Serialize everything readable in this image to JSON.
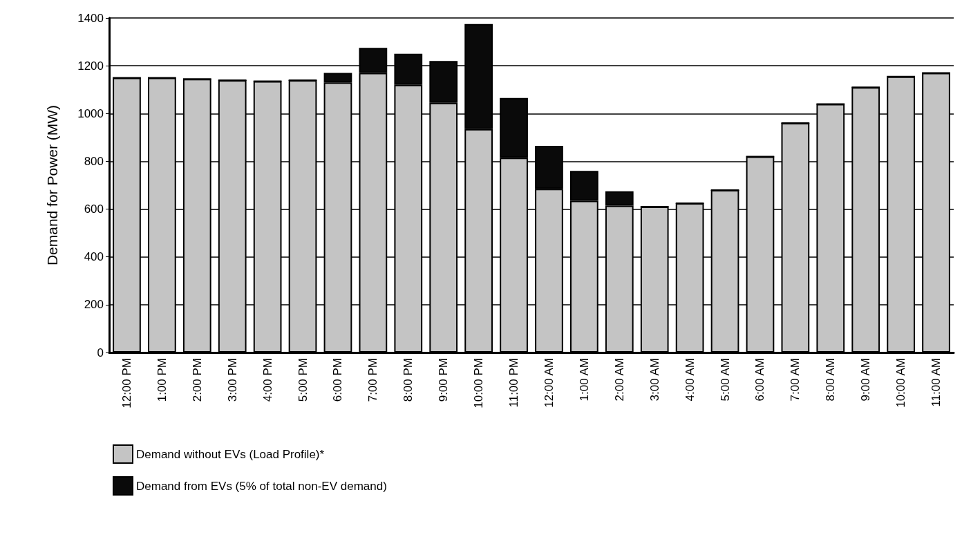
{
  "chart_data": {
    "type": "bar",
    "stacked": true,
    "ylabel": "Demand for Power (MW)",
    "categories": [
      "12:00 PM",
      "1:00 PM",
      "2:00 PM",
      "3:00 PM",
      "4:00 PM",
      "5:00 PM",
      "6:00 PM",
      "7:00 PM",
      "8:00 PM",
      "9:00 PM",
      "10:00 PM",
      "11:00 PM",
      "12:00 AM",
      "1:00 AM",
      "2:00 AM",
      "3:00 AM",
      "4:00 AM",
      "5:00 AM",
      "6:00 AM",
      "7:00 AM",
      "8:00 AM",
      "9:00 AM",
      "10:00 AM",
      "11:00 AM"
    ],
    "series": [
      {
        "name": "Demand without EVs (Load Profile)*",
        "color": "#c4c4c4",
        "values": [
          1150,
          1150,
          1145,
          1140,
          1135,
          1140,
          1130,
          1170,
          1120,
          1045,
          935,
          815,
          685,
          635,
          615,
          610,
          625,
          680,
          820,
          960,
          1040,
          1110,
          1155,
          1170
        ]
      },
      {
        "name": "Demand from EVs (5% of total non-EV demand)",
        "color": "#0a0a0a",
        "values": [
          0,
          0,
          0,
          0,
          0,
          0,
          40,
          105,
          130,
          175,
          440,
          250,
          180,
          125,
          60,
          0,
          0,
          0,
          0,
          0,
          0,
          0,
          0,
          0
        ]
      }
    ],
    "ylim": [
      0,
      1400
    ],
    "yticks": [
      0,
      200,
      400,
      600,
      800,
      1000,
      1200,
      1400
    ],
    "grid": "y",
    "legend": "bottom left"
  }
}
